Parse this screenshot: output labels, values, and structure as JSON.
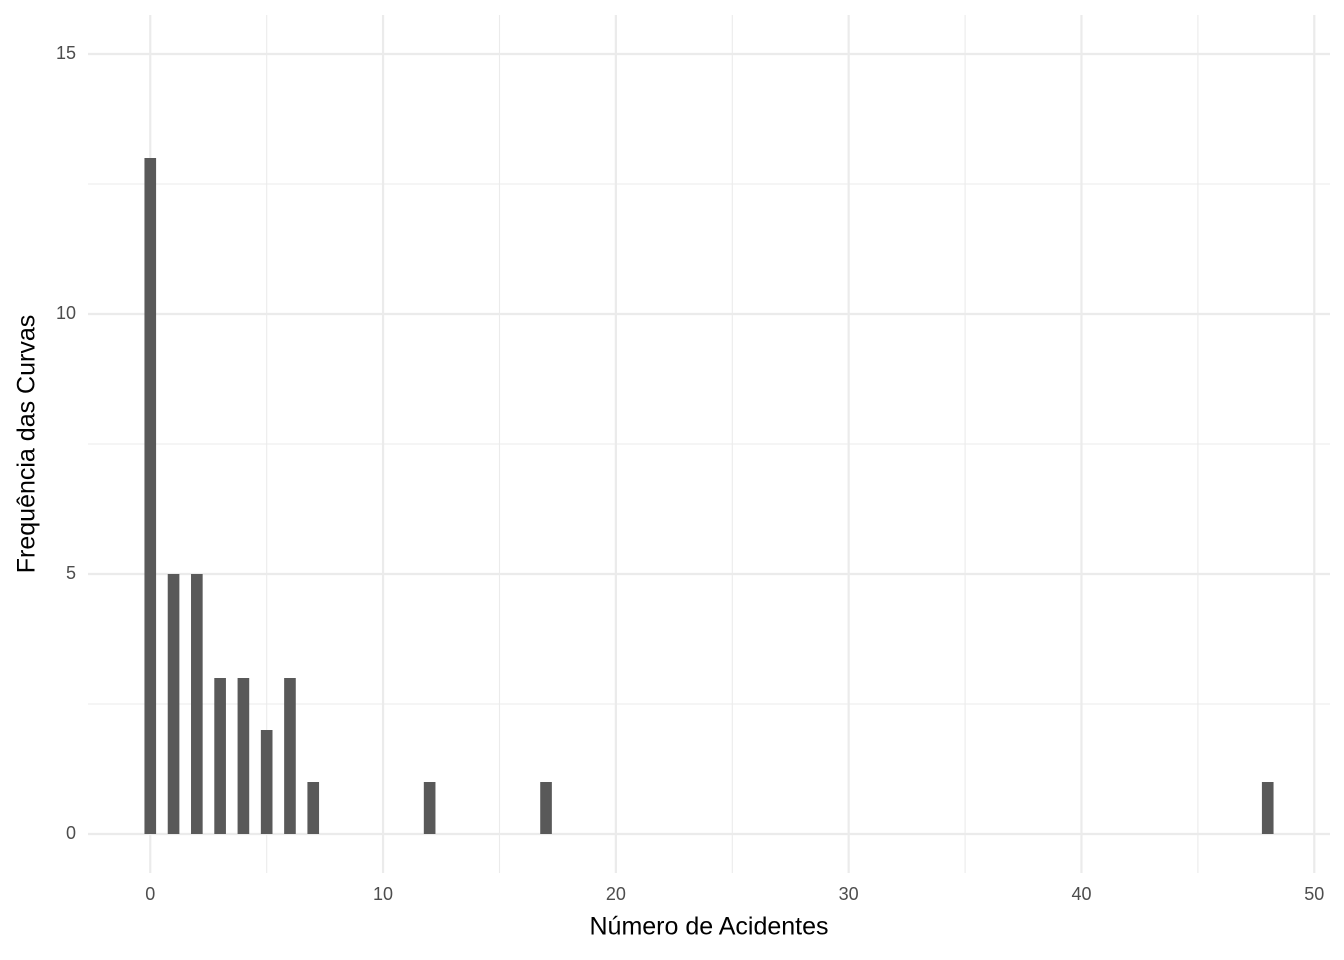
{
  "chart_data": {
    "type": "bar",
    "x_label": "Número de Acidentes",
    "y_label": "Frequência das Curvas",
    "x": [
      0,
      1,
      2,
      3,
      4,
      5,
      6,
      7,
      12,
      17,
      48
    ],
    "values": [
      13,
      5,
      5,
      3,
      3,
      2,
      3,
      1,
      1,
      1,
      1
    ],
    "color": "#595959",
    "xlim": [
      -2.675,
      50.675
    ],
    "xticks": [
      0,
      10,
      20,
      30,
      40,
      50
    ],
    "minor_xticks": [
      5,
      15,
      25,
      35,
      45
    ],
    "ylim": [
      -0.75,
      15.75
    ],
    "yticks": [
      0,
      5,
      10,
      15
    ],
    "minor_yticks": [
      2.5,
      7.5,
      12.5
    ],
    "grid": true
  }
}
